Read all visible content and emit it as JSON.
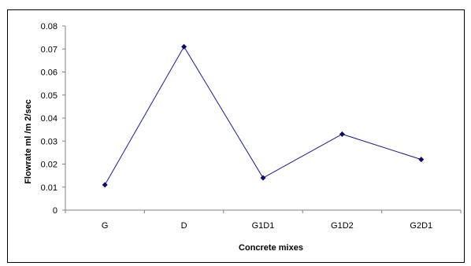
{
  "chart_data": {
    "type": "line",
    "title": "",
    "xlabel": "Concrete mixes",
    "ylabel": "Flowrate ml   /m 2/sec",
    "categories": [
      "G",
      "D",
      "G1D1",
      "G1D2",
      "G2D1"
    ],
    "series": [
      {
        "values": [
          0.011,
          0.071,
          0.014,
          0.033,
          0.022
        ]
      }
    ],
    "ylim": [
      0,
      0.08
    ],
    "yticks": [
      "0",
      "0.01",
      "0.02",
      "0.03",
      "0.04",
      "0.05",
      "0.06",
      "0.07",
      "0.08"
    ],
    "grid": false,
    "legend": "none",
    "colors": {
      "line": "#1c1c8c",
      "marker": "#0b0b6e",
      "axis": "#808080"
    }
  }
}
